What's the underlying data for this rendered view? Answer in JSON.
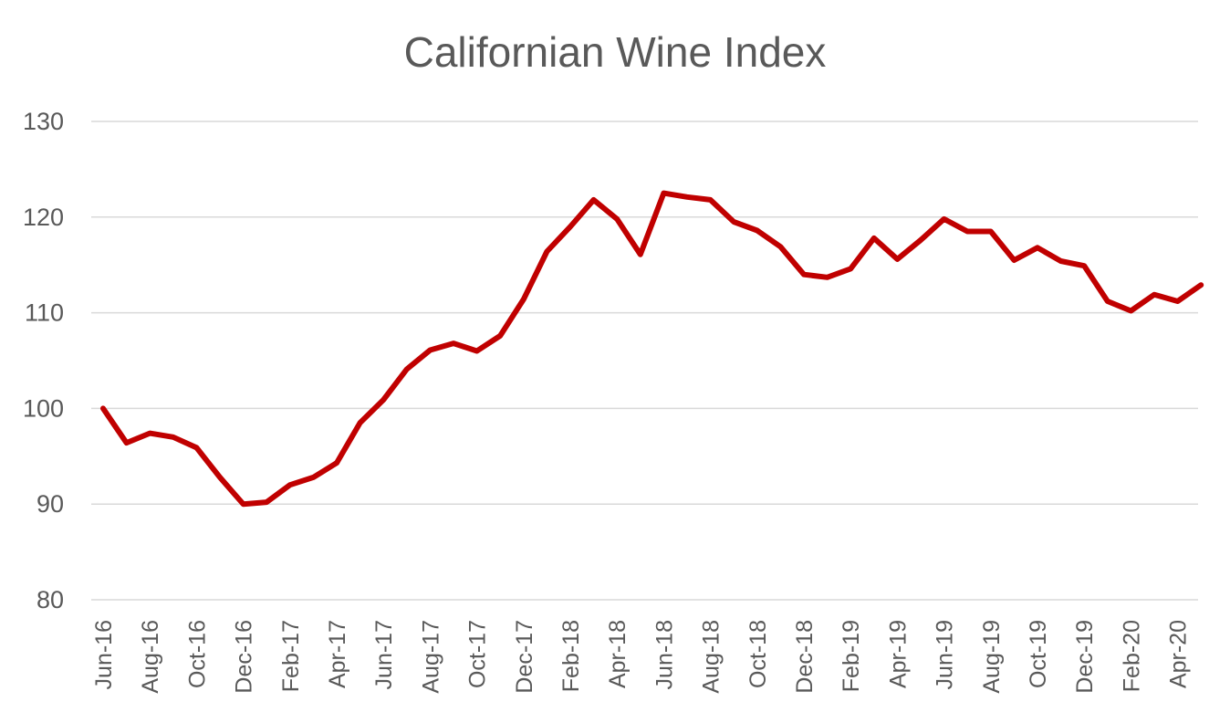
{
  "chart_data": {
    "type": "line",
    "title": "Californian Wine Index",
    "xlabel": "",
    "ylabel": "",
    "ylim": [
      80,
      130
    ],
    "yticks": [
      80,
      90,
      100,
      110,
      120,
      130
    ],
    "grid": true,
    "legend": "none",
    "categories": [
      "Jun-16",
      "Jul-16",
      "Aug-16",
      "Sep-16",
      "Oct-16",
      "Nov-16",
      "Dec-16",
      "Jan-17",
      "Feb-17",
      "Mar-17",
      "Apr-17",
      "May-17",
      "Jun-17",
      "Jul-17",
      "Aug-17",
      "Sep-17",
      "Oct-17",
      "Nov-17",
      "Dec-17",
      "Jan-18",
      "Feb-18",
      "Mar-18",
      "Apr-18",
      "May-18",
      "Jun-18",
      "Jul-18",
      "Aug-18",
      "Sep-18",
      "Oct-18",
      "Nov-18",
      "Dec-18",
      "Jan-19",
      "Feb-19",
      "Mar-19",
      "Apr-19",
      "May-19",
      "Jun-19",
      "Jul-19",
      "Aug-19",
      "Sep-19",
      "Oct-19",
      "Nov-19",
      "Dec-19",
      "Jan-20",
      "Feb-20",
      "Mar-20",
      "Apr-20",
      "May-20"
    ],
    "tick_labels": [
      "Jun-16",
      "Aug-16",
      "Oct-16",
      "Dec-16",
      "Feb-17",
      "Apr-17",
      "Jun-17",
      "Aug-17",
      "Oct-17",
      "Dec-17",
      "Feb-18",
      "Apr-18",
      "Jun-18",
      "Aug-18",
      "Oct-18",
      "Dec-18",
      "Feb-19",
      "Apr-19",
      "Jun-19",
      "Aug-19",
      "Oct-19",
      "Dec-19",
      "Feb-20",
      "Apr-20"
    ],
    "series": [
      {
        "color": "#c00000",
        "values": [
          100.0,
          96.4,
          97.4,
          97.0,
          95.9,
          92.8,
          90.0,
          90.2,
          92.0,
          92.8,
          94.3,
          98.5,
          100.9,
          104.1,
          106.1,
          106.8,
          106.0,
          107.6,
          111.4,
          116.4,
          119.0,
          121.8,
          119.8,
          116.1,
          122.5,
          122.1,
          121.8,
          119.5,
          118.6,
          116.9,
          114.0,
          113.7,
          114.6,
          117.8,
          115.6,
          117.6,
          119.8,
          118.5,
          118.5,
          115.5,
          116.8,
          115.4,
          114.9,
          111.2,
          110.2,
          111.9,
          111.2,
          112.9
        ]
      }
    ]
  }
}
